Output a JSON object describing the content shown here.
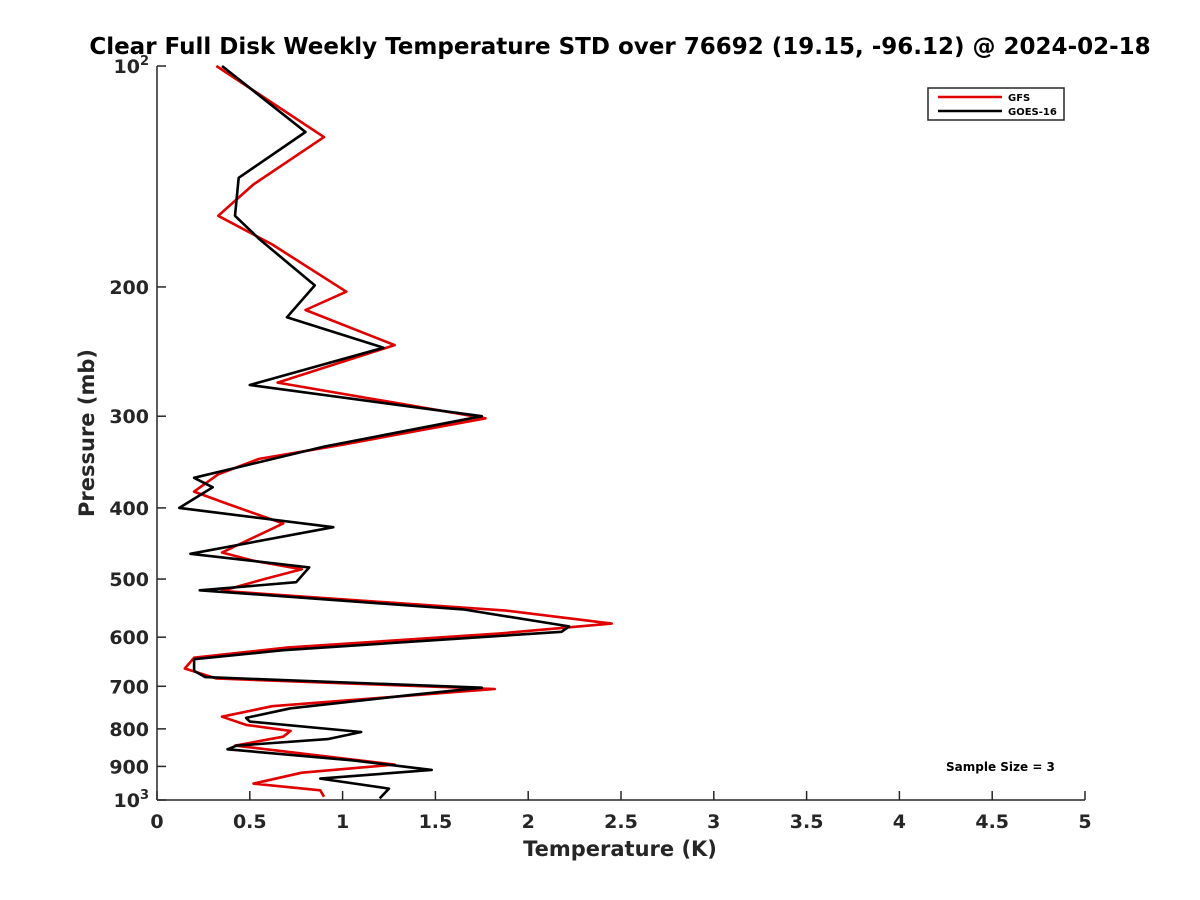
{
  "chart_data": {
    "type": "line",
    "title": "Clear Full Disk Weekly Temperature STD over 76692 (19.15, -96.12) @ 2024-02-18",
    "xlabel": "Temperature (K)",
    "ylabel": "Pressure (mb)",
    "xlim": [
      0,
      5
    ],
    "ylim": [
      100,
      1000
    ],
    "y_scale": "log",
    "y_reversed": true,
    "grid": false,
    "legend_position": "top-right",
    "x_ticks": [
      "0",
      "0.5",
      "1",
      "1.5",
      "2",
      "2.5",
      "3",
      "3.5",
      "4",
      "4.5",
      "5"
    ],
    "x_tick_values": [
      0,
      0.5,
      1,
      1.5,
      2,
      2.5,
      3,
      3.5,
      4,
      4.5,
      5
    ],
    "y_ticks": [
      {
        "value": 100,
        "label": "10",
        "exp": "2"
      },
      {
        "value": 200,
        "label": "200",
        "exp": ""
      },
      {
        "value": 300,
        "label": "300",
        "exp": ""
      },
      {
        "value": 400,
        "label": "400",
        "exp": ""
      },
      {
        "value": 500,
        "label": "500",
        "exp": ""
      },
      {
        "value": 600,
        "label": "600",
        "exp": ""
      },
      {
        "value": 700,
        "label": "700",
        "exp": ""
      },
      {
        "value": 800,
        "label": "800",
        "exp": ""
      },
      {
        "value": 900,
        "label": "900",
        "exp": ""
      },
      {
        "value": 1000,
        "label": "10",
        "exp": "3"
      }
    ],
    "annotation": "Sample Size = 3",
    "series": [
      {
        "name": "GFS",
        "color": "#e00000",
        "points": [
          [
            0.32,
            100
          ],
          [
            0.9,
            125
          ],
          [
            0.52,
            145
          ],
          [
            0.33,
            160
          ],
          [
            0.62,
            175
          ],
          [
            1.02,
            203
          ],
          [
            0.8,
            215
          ],
          [
            1.28,
            240
          ],
          [
            0.65,
            270
          ],
          [
            1.77,
            302
          ],
          [
            1.0,
            328
          ],
          [
            0.55,
            343
          ],
          [
            0.33,
            360
          ],
          [
            0.2,
            380
          ],
          [
            0.38,
            395
          ],
          [
            0.68,
            420
          ],
          [
            0.35,
            460
          ],
          [
            0.52,
            472
          ],
          [
            0.78,
            485
          ],
          [
            0.58,
            500
          ],
          [
            0.35,
            519
          ],
          [
            1.88,
            552
          ],
          [
            2.45,
            575
          ],
          [
            1.85,
            593
          ],
          [
            0.7,
            620
          ],
          [
            0.2,
            640
          ],
          [
            0.15,
            662
          ],
          [
            0.32,
            683
          ],
          [
            1.82,
            706
          ],
          [
            0.62,
            745
          ],
          [
            0.35,
            770
          ],
          [
            0.48,
            790
          ],
          [
            0.72,
            805
          ],
          [
            0.68,
            820
          ],
          [
            0.42,
            843
          ],
          [
            1.28,
            895
          ],
          [
            0.78,
            918
          ],
          [
            0.52,
            950
          ],
          [
            0.88,
            970
          ],
          [
            0.9,
            990
          ]
        ]
      },
      {
        "name": "GOES-16",
        "color": "#000000",
        "points": [
          [
            0.35,
            100
          ],
          [
            0.8,
            123
          ],
          [
            0.44,
            142
          ],
          [
            0.42,
            160
          ],
          [
            0.55,
            172
          ],
          [
            0.85,
            199
          ],
          [
            0.7,
            220
          ],
          [
            1.22,
            242
          ],
          [
            0.5,
            272
          ],
          [
            1.75,
            300
          ],
          [
            0.9,
            330
          ],
          [
            0.2,
            364
          ],
          [
            0.3,
            375
          ],
          [
            0.12,
            400
          ],
          [
            0.95,
            425
          ],
          [
            0.18,
            462
          ],
          [
            0.82,
            482
          ],
          [
            0.75,
            505
          ],
          [
            0.23,
            518
          ],
          [
            1.65,
            550
          ],
          [
            2.22,
            580
          ],
          [
            2.18,
            590
          ],
          [
            0.68,
            625
          ],
          [
            0.2,
            643
          ],
          [
            0.2,
            667
          ],
          [
            0.26,
            680
          ],
          [
            1.75,
            703
          ],
          [
            1.35,
            720
          ],
          [
            0.72,
            750
          ],
          [
            0.48,
            773
          ],
          [
            0.5,
            782
          ],
          [
            1.1,
            808
          ],
          [
            0.92,
            826
          ],
          [
            0.43,
            843
          ],
          [
            0.38,
            853
          ],
          [
            1.05,
            883
          ],
          [
            1.48,
            910
          ],
          [
            0.88,
            935
          ],
          [
            1.25,
            965
          ],
          [
            1.2,
            995
          ]
        ]
      }
    ]
  }
}
